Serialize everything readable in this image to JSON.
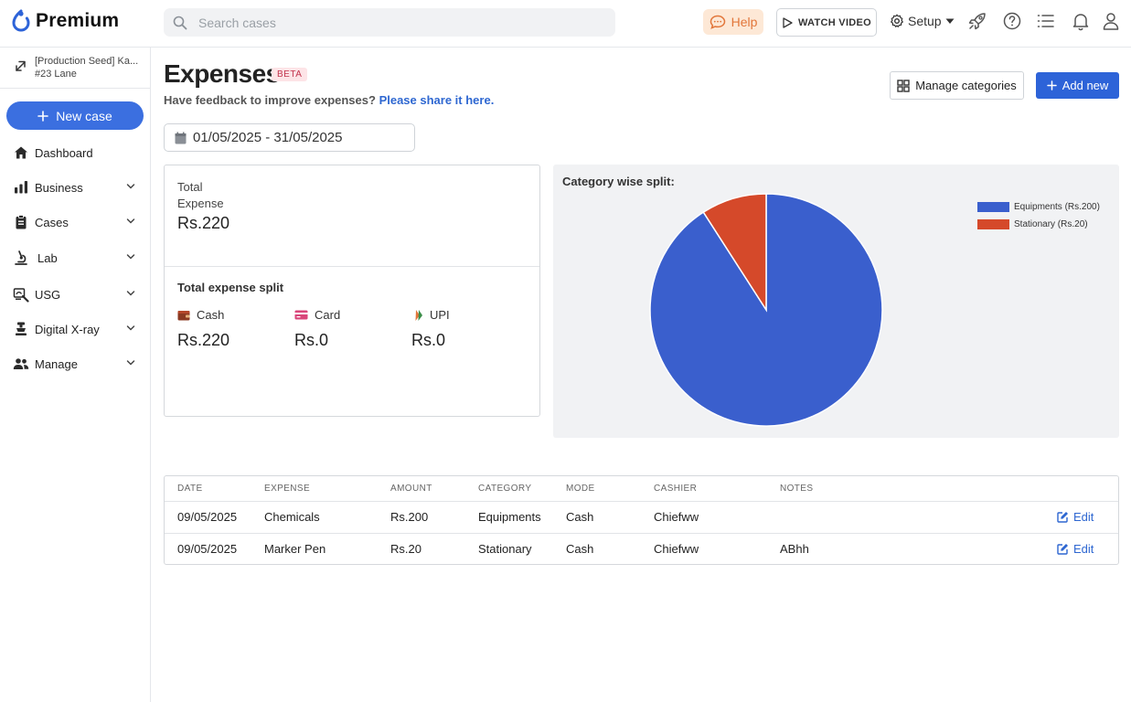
{
  "app": {
    "brand": "Premium"
  },
  "search": {
    "placeholder": "Search cases"
  },
  "topbar": {
    "help": "Help",
    "watch_video": "WATCH VIDEO",
    "setup": "Setup"
  },
  "clinic": {
    "name": "[Production Seed] Ka...",
    "address": "#23 Lane"
  },
  "sidebar": {
    "new_case": "New case",
    "items": [
      {
        "label": "Dashboard",
        "icon": "home-icon",
        "expandable": false
      },
      {
        "label": "Business",
        "icon": "bar-chart-icon",
        "expandable": true
      },
      {
        "label": "Cases",
        "icon": "clipboard-icon",
        "expandable": true
      },
      {
        "label": "Lab",
        "icon": "microscope-icon",
        "expandable": true
      },
      {
        "label": "USG",
        "icon": "ultrasound-icon",
        "expandable": true
      },
      {
        "label": "Digital X-ray",
        "icon": "xray-icon",
        "expandable": true
      },
      {
        "label": "Manage",
        "icon": "users-icon",
        "expandable": true
      }
    ]
  },
  "page": {
    "title": "Expenses",
    "badge": "BETA",
    "feedback_text": "Have feedback to improve expenses?",
    "feedback_link": "Please share it here.",
    "manage_categories": "Manage categories",
    "add_new": "Add new",
    "date_range": "01/05/2025 - 31/05/2025"
  },
  "totals": {
    "total_label": "Total Expense",
    "total_value": "Rs.220",
    "split_title": "Total expense split",
    "split": [
      {
        "label": "Cash",
        "value": "Rs.220",
        "icon": "wallet-icon",
        "color": "#b5472a"
      },
      {
        "label": "Card",
        "value": "Rs.0",
        "icon": "card-icon",
        "color": "#d9467a"
      },
      {
        "label": "UPI",
        "value": "Rs.0",
        "icon": "upi-icon",
        "color": "#e2763a"
      }
    ]
  },
  "chart_data": {
    "type": "pie",
    "title": "Category wise split:",
    "categories": [
      "Equipments",
      "Stationary"
    ],
    "values": [
      200,
      20
    ],
    "legend": [
      "Equipments (Rs.200)",
      "Stationary (Rs.20)"
    ],
    "colors": [
      "#3a5fcd",
      "#d5492a"
    ],
    "legend_position": "top-right"
  },
  "table": {
    "headers": [
      "DATE",
      "EXPENSE",
      "AMOUNT",
      "CATEGORY",
      "MODE",
      "CASHIER",
      "NOTES"
    ],
    "rows": [
      {
        "date": "09/05/2025",
        "expense": "Chemicals",
        "amount": "Rs.200",
        "category": "Equipments",
        "mode": "Cash",
        "cashier": "Chiefww",
        "notes": ""
      },
      {
        "date": "09/05/2025",
        "expense": "Marker Pen",
        "amount": "Rs.20",
        "category": "Stationary",
        "mode": "Cash",
        "cashier": "Chiefww",
        "notes": "ABhh"
      }
    ],
    "edit_label": "Edit"
  },
  "colors": {
    "accent": "#2d63d8",
    "help_bg": "#fde8d6",
    "help_fg": "#e2763a",
    "beta_bg": "#fde4e7",
    "beta_fg": "#c2334d"
  }
}
